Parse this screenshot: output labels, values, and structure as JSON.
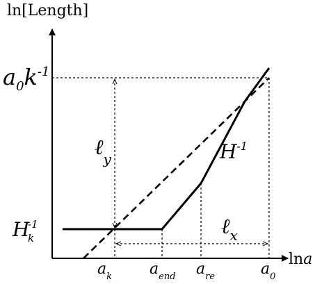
{
  "axes": {
    "y_label": "ln[Length]",
    "x_label_ln": "ln",
    "x_label_var": "a"
  },
  "labels": {
    "hubble_now": {
      "base": "a",
      "sub": "0",
      "mid": "k",
      "sup": "-1"
    },
    "hubble_k": {
      "base": "H",
      "sub": "k",
      "sup": "-1"
    },
    "ell_y": {
      "base": "ℓ",
      "sub": "y"
    },
    "hubble": {
      "base": "H",
      "sup": "-1"
    },
    "ell_x": {
      "base": "ℓ",
      "sub": "x"
    }
  },
  "x_ticks": [
    {
      "base": "a",
      "sub": "k"
    },
    {
      "base": "a",
      "sub": "end"
    },
    {
      "base": "a",
      "sub": "re"
    },
    {
      "base": "a",
      "sub": "0"
    }
  ]
}
